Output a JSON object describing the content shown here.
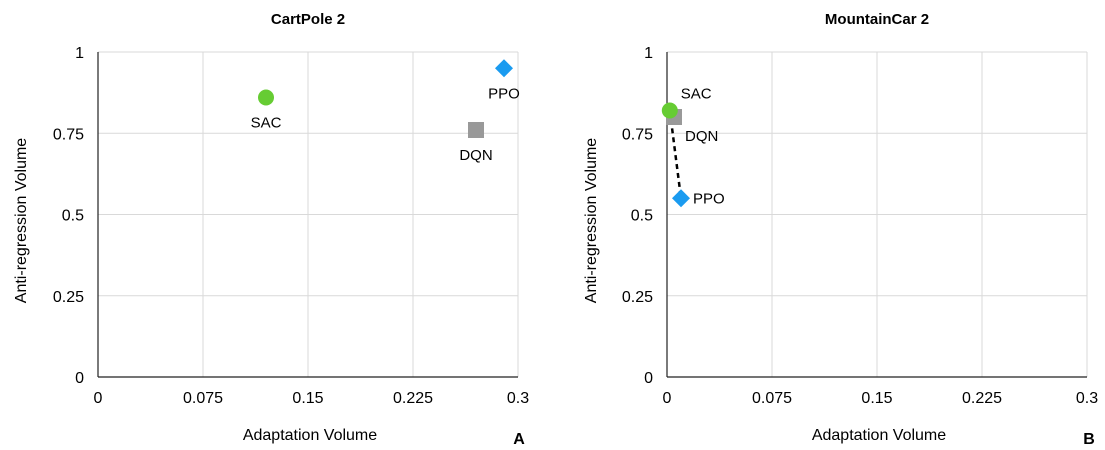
{
  "chart_data": [
    {
      "type": "scatter",
      "title": "CartPole 2",
      "xlabel": "Adaptation Volume",
      "ylabel": "Anti-regression Volume",
      "xlim": [
        0,
        0.3
      ],
      "ylim": [
        0,
        1
      ],
      "x_ticks": [
        "0",
        "0.075",
        "0.15",
        "0.225",
        "0.3"
      ],
      "y_ticks": [
        "0",
        "0.25",
        "0.5",
        "0.75",
        "1"
      ],
      "grid": true,
      "panel_label": "A",
      "series": [
        {
          "name": "SAC",
          "x": 0.12,
          "y": 0.86,
          "marker": "circle",
          "color": "#66cc33",
          "label_pos": "below"
        },
        {
          "name": "DQN",
          "x": 0.27,
          "y": 0.76,
          "marker": "square",
          "color": "#999999",
          "label_pos": "below"
        },
        {
          "name": "PPO",
          "x": 0.29,
          "y": 0.95,
          "marker": "diamond",
          "color": "#1a9bf0",
          "label_pos": "below"
        }
      ]
    },
    {
      "type": "scatter",
      "title": "MountainCar 2",
      "xlabel": "Adaptation Volume",
      "ylabel": "Anti-regression Volume",
      "xlim": [
        0,
        0.3
      ],
      "ylim": [
        0,
        1
      ],
      "x_ticks": [
        "0",
        "0.075",
        "0.15",
        "0.225",
        "0.3"
      ],
      "y_ticks": [
        "0",
        "0.25",
        "0.5",
        "0.75",
        "1"
      ],
      "grid": true,
      "panel_label": "B",
      "series": [
        {
          "name": "SAC",
          "x": 0.002,
          "y": 0.82,
          "marker": "circle",
          "color": "#66cc33",
          "label_pos": "above-right"
        },
        {
          "name": "DQN",
          "x": 0.005,
          "y": 0.8,
          "marker": "square",
          "color": "#999999",
          "label_pos": "below-right"
        },
        {
          "name": "PPO",
          "x": 0.01,
          "y": 0.55,
          "marker": "diamond",
          "color": "#1a9bf0",
          "label_pos": "right"
        }
      ],
      "dashed_connector": [
        "SAC",
        "PPO"
      ]
    }
  ]
}
